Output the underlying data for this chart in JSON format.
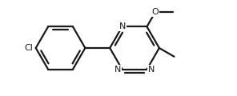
{
  "bg_color": "#ffffff",
  "line_color": "#1a1a1a",
  "line_width": 1.6,
  "figsize": [
    2.96,
    1.2
  ],
  "dpi": 100,
  "s": 1.0,
  "inner_off": 0.13,
  "inner_shrink": 0.2,
  "font_size": 8.0,
  "xlim": [
    0.2,
    9.8
  ],
  "ylim": [
    0.5,
    4.2
  ]
}
